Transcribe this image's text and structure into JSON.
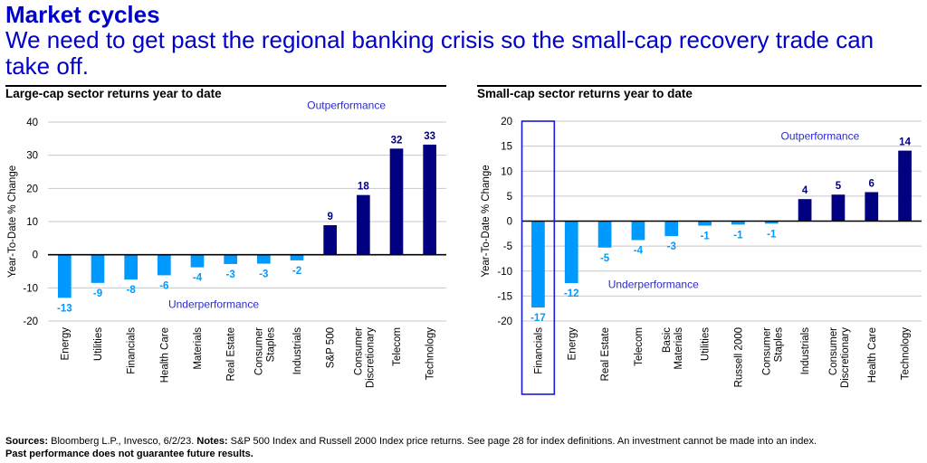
{
  "header": {
    "title": "Market cycles",
    "subtitle": "We need to get past the regional banking crisis so the small-cap recovery trade can take off."
  },
  "colors": {
    "title_blue": "#0000c8",
    "negative_bar": "#0099ff",
    "positive_bar": "#000080",
    "annotation": "#2a2ad0",
    "highlight_box": "#1a1ad6"
  },
  "chart_data": [
    {
      "type": "bar",
      "title": "Large-cap sector returns year to date",
      "xlabel": "",
      "ylabel": "Year-To-Date  % Change",
      "ylim": [
        -20,
        40
      ],
      "yticks": [
        -20,
        -10,
        0,
        10,
        20,
        30,
        40
      ],
      "grid": true,
      "categories": [
        "Energy",
        "Utilities",
        "Financials",
        "Health Care",
        "Materials",
        "Real Estate",
        "Consumer Staples",
        "Industrials",
        "S&P 500",
        "Consumer Discretionary",
        "Telecom",
        "Technology"
      ],
      "values": [
        -13,
        -8.5,
        -7.5,
        -6.2,
        -3.8,
        -2.8,
        -2.7,
        -1.7,
        8.9,
        18,
        32,
        33.2
      ],
      "data_labels": [
        "-13",
        "-9",
        "-8",
        "-6",
        "-4",
        "-3",
        "-3",
        "-2",
        "9",
        "18",
        "32",
        "33"
      ],
      "annotations": [
        {
          "text": "Outperformance",
          "x_category": "S&P 500",
          "y": 45
        },
        {
          "text": "Underperformance",
          "x_category": "Materials",
          "y": -15
        }
      ]
    },
    {
      "type": "bar",
      "title": "Small-cap sector returns year to date",
      "xlabel": "",
      "ylabel": "Year-To-Date  % Change",
      "ylim": [
        -20,
        20
      ],
      "yticks": [
        -20,
        -15,
        -10,
        -5,
        0,
        5,
        10,
        15,
        20
      ],
      "grid": true,
      "categories": [
        "Financials",
        "Energy",
        "Real Estate",
        "Telecom",
        "Basic Materials",
        "Utilities",
        "Russell 2000",
        "Consumer Staples",
        "Industrials",
        "Consumer Discretionary",
        "Health Care",
        "Technology"
      ],
      "values": [
        -17.3,
        -12.4,
        -5.3,
        -3.8,
        -3,
        -0.9,
        -0.7,
        -0.5,
        4.4,
        5.3,
        5.8,
        14.1
      ],
      "data_labels": [
        "-17",
        "-12",
        "-5",
        "-4",
        "-3",
        "-1",
        "-1",
        "-1",
        "4",
        "5",
        "6",
        "14"
      ],
      "highlight": "Financials",
      "annotations": [
        {
          "text": "Outperformance",
          "x_category": "Consumer Discretionary",
          "y": 17
        },
        {
          "text": "Underperformance",
          "x_category": "Basic Materials",
          "y": -12.7
        }
      ]
    }
  ],
  "footer": {
    "sources_label": "Sources:",
    "sources_text": " Bloomberg L.P., Invesco, 6/2/23. ",
    "notes_label": "Notes:",
    "notes_text": " S&P 500 Index and Russell 2000 Index price returns. See page 28 for index definitions. An investment cannot be made into an index.",
    "disclaimer": "Past performance does not guarantee future results."
  }
}
